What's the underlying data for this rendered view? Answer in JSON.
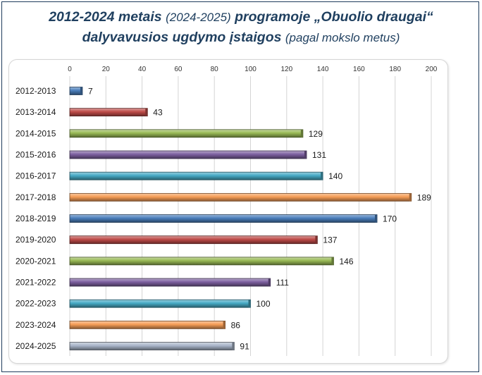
{
  "title": {
    "line1_bold_a": "2012-2024 metais",
    "line1_paren": "(2024-2025)",
    "line1_bold_b": "programoje „Obuolio draugai“",
    "line2_bold": "dalyvavusios ugdymo įstaigos",
    "line2_paren": "(pagal mokslo metus)"
  },
  "chart_data": {
    "type": "bar",
    "orientation": "horizontal",
    "title": "2012-2024 metais (2024-2025) programoje „Obuolio draugai“ dalyvavusios ugdymo įstaigos (pagal mokslo metus)",
    "categories": [
      "2012-2013",
      "2013-2014",
      "2014-2015",
      "2015-2016",
      "2016-2017",
      "2017-2018",
      "2018-2019",
      "2019-2020",
      "2020-2021",
      "2021-2022",
      "2022-2023",
      "2023-2024",
      "2024-2025"
    ],
    "values": [
      7,
      43,
      129,
      131,
      140,
      189,
      170,
      137,
      146,
      111,
      100,
      86,
      91
    ],
    "bar_colors": [
      "#4a7ebb",
      "#be4b48",
      "#98b954",
      "#7d60a0",
      "#46aac5",
      "#f59d56",
      "#4a7ebb",
      "#be4b48",
      "#98b954",
      "#7d60a0",
      "#46aac5",
      "#f59d56",
      "#a8b4c8"
    ],
    "x_axis_position": "top",
    "xlim": [
      0,
      200
    ],
    "xticks": [
      0,
      20,
      40,
      60,
      80,
      100,
      120,
      140,
      160,
      180,
      200
    ],
    "grid": true,
    "legend": "none",
    "data_labels": true
  }
}
